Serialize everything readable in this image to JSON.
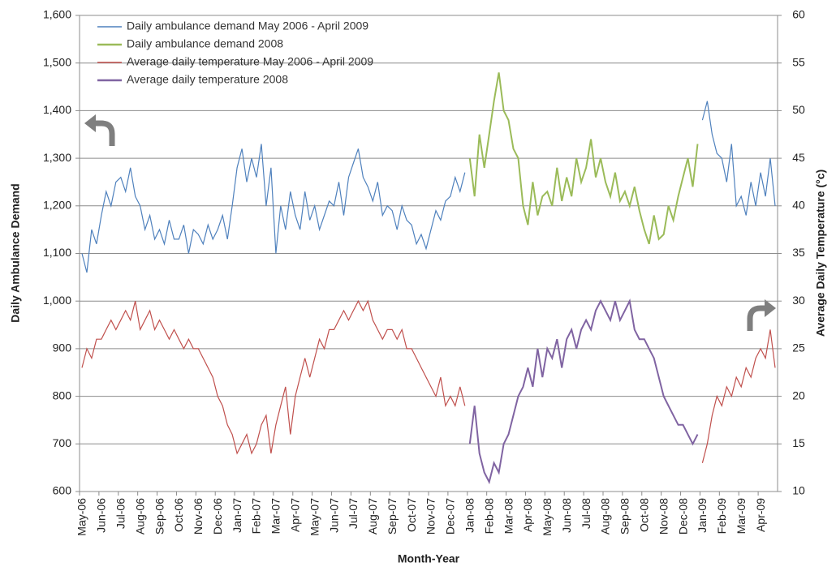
{
  "chart_data": {
    "type": "line",
    "xlabel": "Month-Year",
    "ylabel": "Daily Ambulance Demand",
    "y2label": "Average Daily Temperature (°c)",
    "categories": [
      "May-06",
      "Jun-06",
      "Jul-06",
      "Aug-06",
      "Sep-06",
      "Oct-06",
      "Nov-06",
      "Dec-06",
      "Jan-07",
      "Feb-07",
      "Mar-07",
      "Apr-07",
      "May-07",
      "Jun-07",
      "Jul-07",
      "Aug-07",
      "Sep-07",
      "Oct-07",
      "Nov-07",
      "Dec-07",
      "Jan-08",
      "Feb-08",
      "Mar-08",
      "Apr-08",
      "May-08",
      "Jun-08",
      "Jul-08",
      "Aug-08",
      "Sep-08",
      "Oct-08",
      "Nov-08",
      "Dec-08",
      "Jan-09",
      "Feb-09",
      "Mar-09",
      "Apr-09"
    ],
    "ylim": [
      600,
      1600
    ],
    "yticks": [
      600,
      700,
      800,
      900,
      {
        "value": 1000,
        "label": "1,000"
      },
      {
        "value": 1100,
        "label": "1,100"
      },
      {
        "value": 1200,
        "label": "1,200"
      },
      {
        "value": 1300,
        "label": "1,300"
      },
      {
        "value": 1400,
        "label": "1,400"
      },
      {
        "value": 1500,
        "label": "1,500"
      },
      {
        "value": 1600,
        "label": "1,600"
      }
    ],
    "y2lim": [
      10,
      60
    ],
    "y2ticks": [
      10,
      15,
      20,
      25,
      30,
      35,
      40,
      45,
      50,
      55,
      60
    ],
    "grid": true,
    "legend": "top-left",
    "series": [
      {
        "name": "Daily ambulance demand May 2006 - April 2009",
        "color": "#4f81bd",
        "values": [
          [
            1100,
            1060,
            1150,
            1120
          ],
          [
            1180,
            1230,
            1200,
            1250
          ],
          [
            1260,
            1230,
            1280,
            1220
          ],
          [
            1200,
            1150,
            1180,
            1130
          ],
          [
            1150,
            1120,
            1170,
            1130
          ],
          [
            1130,
            1160,
            1100,
            1150
          ],
          [
            1140,
            1120,
            1160,
            1130
          ],
          [
            1150,
            1180,
            1130,
            1200
          ],
          [
            1280,
            1320,
            1250,
            1300
          ],
          [
            1260,
            1330,
            1200,
            1280
          ],
          [
            1100,
            1200,
            1150,
            1230
          ],
          [
            1180,
            1150,
            1230,
            1170
          ],
          [
            1200,
            1150,
            1180,
            1210
          ],
          [
            1200,
            1250,
            1180,
            1260
          ],
          [
            1290,
            1320,
            1260,
            1240
          ],
          [
            1210,
            1250,
            1180,
            1200
          ],
          [
            1190,
            1150,
            1200,
            1170
          ],
          [
            1160,
            1120,
            1140,
            1110
          ],
          [
            1150,
            1190,
            1170,
            1210
          ],
          [
            1220,
            1260,
            1230,
            1270
          ],
          null,
          null,
          null,
          null,
          null,
          null,
          null,
          null,
          null,
          null,
          null,
          null,
          [
            1380,
            1420,
            1350,
            1310
          ],
          [
            1300,
            1250,
            1330,
            1200
          ],
          [
            1220,
            1180,
            1250,
            1200
          ],
          [
            1270,
            1220,
            1300,
            1200
          ]
        ]
      },
      {
        "name": "Daily ambulance demand 2008",
        "color": "#9bbb59",
        "values": [
          null,
          null,
          null,
          null,
          null,
          null,
          null,
          null,
          null,
          null,
          null,
          null,
          null,
          null,
          null,
          null,
          null,
          null,
          null,
          null,
          [
            1300,
            1220,
            1350,
            1280
          ],
          [
            1350,
            1420,
            1480,
            1400
          ],
          [
            1380,
            1320,
            1300,
            1200
          ],
          [
            1160,
            1250,
            1180,
            1220
          ],
          [
            1230,
            1200,
            1280,
            1210
          ],
          [
            1260,
            1220,
            1300,
            1250
          ],
          [
            1280,
            1340,
            1260,
            1300
          ],
          [
            1250,
            1220,
            1270,
            1210
          ],
          [
            1230,
            1200,
            1240,
            1190
          ],
          [
            1150,
            1120,
            1180,
            1130
          ],
          [
            1140,
            1200,
            1170,
            1220
          ],
          [
            1260,
            1300,
            1240,
            1330
          ],
          null,
          null,
          null,
          null
        ]
      },
      {
        "name": "Average daily temperature May 2006 - April 2009",
        "color": "#c0504d",
        "axis": "y2",
        "values": [
          [
            23,
            25,
            24,
            26
          ],
          [
            26,
            27,
            28,
            27
          ],
          [
            28,
            29,
            28,
            30
          ],
          [
            27,
            28,
            29,
            27
          ],
          [
            28,
            27,
            26,
            27
          ],
          [
            26,
            25,
            26,
            25
          ],
          [
            25,
            24,
            23,
            22
          ],
          [
            20,
            19,
            17,
            16
          ],
          [
            14,
            15,
            16,
            14
          ],
          [
            15,
            17,
            18,
            14
          ],
          [
            17,
            19,
            21,
            16
          ],
          [
            20,
            22,
            24,
            22
          ],
          [
            24,
            26,
            25,
            27
          ],
          [
            27,
            28,
            29,
            28
          ],
          [
            29,
            30,
            29,
            30
          ],
          [
            28,
            27,
            26,
            27
          ],
          [
            27,
            26,
            27,
            25
          ],
          [
            25,
            24,
            23,
            22
          ],
          [
            21,
            20,
            22,
            19
          ],
          [
            20,
            19,
            21,
            19
          ],
          null,
          null,
          null,
          null,
          null,
          null,
          null,
          null,
          null,
          null,
          null,
          null,
          [
            13,
            15,
            18,
            20
          ],
          [
            19,
            21,
            20,
            22
          ],
          [
            21,
            23,
            22,
            24
          ],
          [
            25,
            24,
            27,
            23
          ]
        ]
      },
      {
        "name": "Average daily temperature 2008",
        "color": "#8064a2",
        "axis": "y2",
        "values": [
          null,
          null,
          null,
          null,
          null,
          null,
          null,
          null,
          null,
          null,
          null,
          null,
          null,
          null,
          null,
          null,
          null,
          null,
          null,
          null,
          [
            15,
            19,
            14,
            12
          ],
          [
            11,
            13,
            12,
            15
          ],
          [
            16,
            18,
            20,
            21
          ],
          [
            23,
            21,
            25,
            22
          ],
          [
            25,
            24,
            26,
            23
          ],
          [
            26,
            27,
            25,
            27
          ],
          [
            28,
            27,
            29,
            30
          ],
          [
            29,
            28,
            30,
            28
          ],
          [
            29,
            30,
            27,
            26
          ],
          [
            26,
            25,
            24,
            22
          ],
          [
            20,
            19,
            18,
            17
          ],
          [
            17,
            16,
            15,
            16
          ],
          null,
          null,
          null,
          null
        ]
      }
    ]
  }
}
